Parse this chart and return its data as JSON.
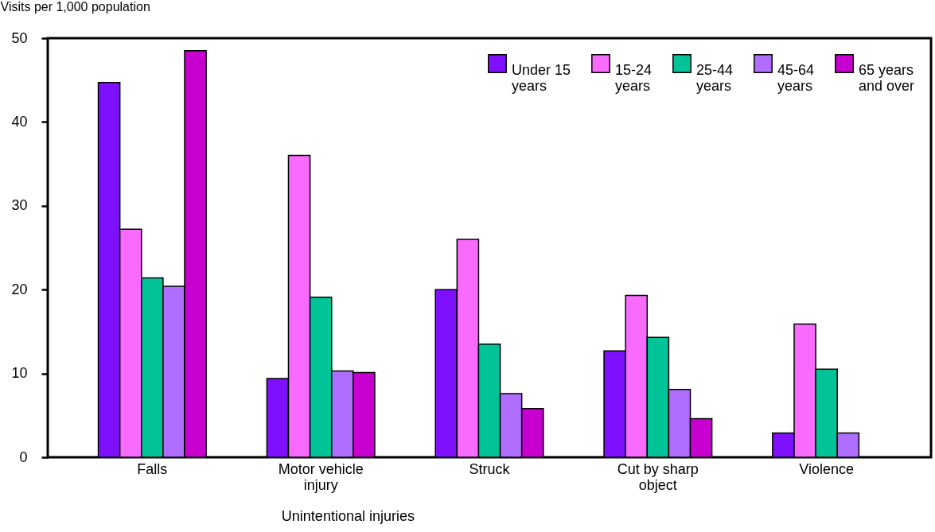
{
  "chart_data": {
    "type": "bar",
    "ylabel": "Visits per 1,000 population",
    "categories": [
      "Falls",
      "Motor vehicle injury",
      "Struck",
      "Cut by sharp object",
      "Violence"
    ],
    "series": [
      {
        "name": "Under 15 years",
        "color": "#7f0fff",
        "values": [
          44.7,
          9.4,
          20.0,
          12.7,
          2.9
        ]
      },
      {
        "name": "15-24 years",
        "color": "#f96afe",
        "values": [
          27.2,
          36.0,
          26.0,
          19.3,
          15.9
        ]
      },
      {
        "name": "25-44 years",
        "color": "#00c497",
        "values": [
          21.4,
          19.1,
          13.5,
          14.3,
          10.5
        ]
      },
      {
        "name": "45-64 years",
        "color": "#b06efe",
        "values": [
          20.4,
          10.3,
          7.6,
          8.1,
          2.9
        ]
      },
      {
        "name": "65 years and over",
        "color": "#c800cf",
        "values": [
          48.5,
          10.1,
          5.8,
          4.6,
          null
        ]
      }
    ],
    "ylim": [
      0,
      50
    ],
    "yticks": [
      0,
      10,
      20,
      30,
      40,
      50
    ],
    "legend": "top right",
    "grid": false,
    "annotations": [
      "Unintentional injuries"
    ]
  }
}
